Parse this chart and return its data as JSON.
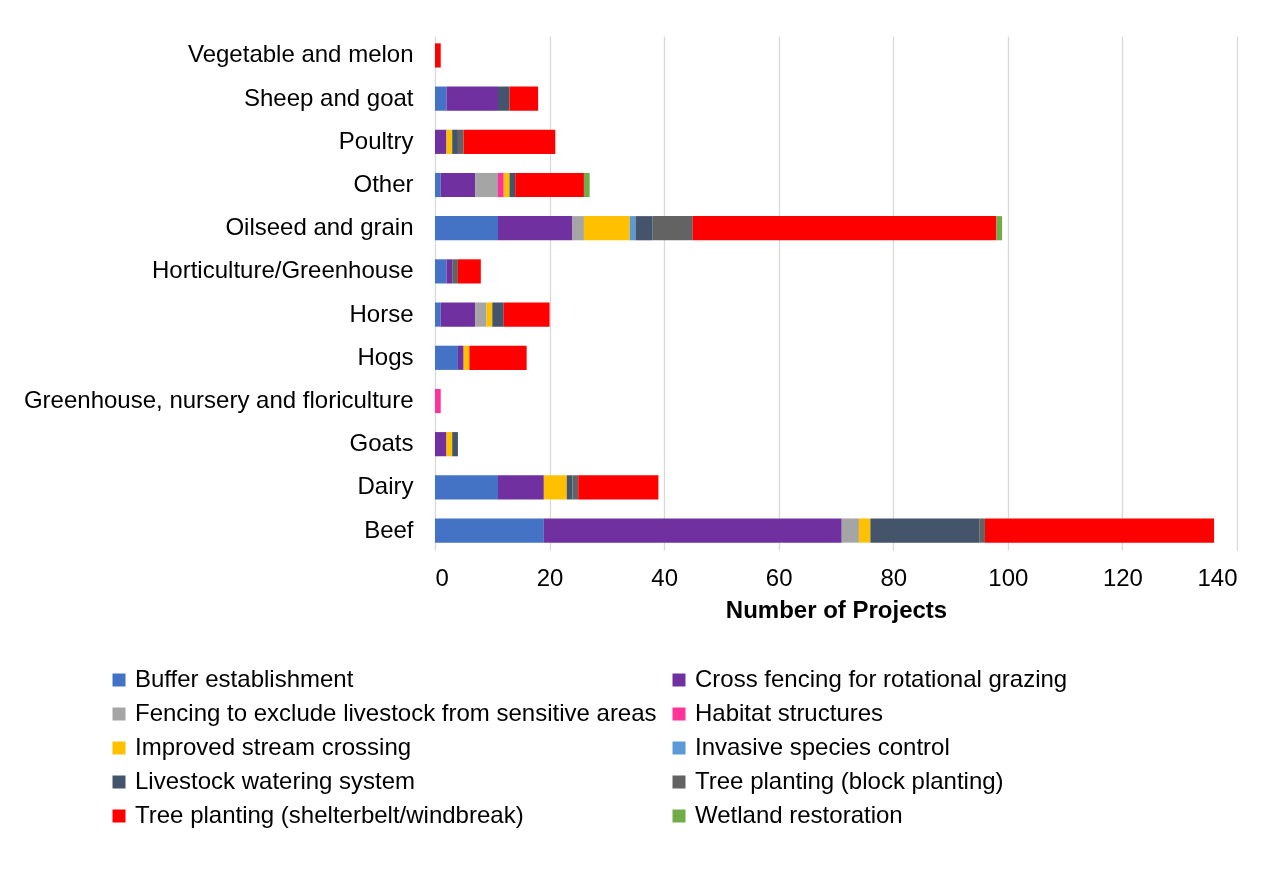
{
  "chart_data": {
    "type": "bar",
    "orientation": "horizontal",
    "stacked": true,
    "xlabel": "Number of Projects",
    "categories": [
      "Vegetable and melon",
      "Sheep and goat",
      "Poultry",
      "Other",
      "Oilseed and grain",
      "Horticulture/Greenhouse",
      "Horse",
      "Hogs",
      "Greenhouse, nursery and floriculture",
      "Goats",
      "Dairy",
      "Beef"
    ],
    "series": [
      {
        "name": "Buffer establishment",
        "color": "#4472c4",
        "values": [
          null,
          2,
          null,
          1,
          11,
          2,
          1,
          4,
          null,
          null,
          11,
          19
        ]
      },
      {
        "name": "Cross fencing for rotational grazing",
        "color": "#7030a0",
        "values": [
          null,
          9,
          2,
          6,
          13,
          1,
          6,
          1,
          null,
          2,
          8,
          52
        ]
      },
      {
        "name": "Fencing to exclude livestock from sensitive areas",
        "color": "#a5a5a5",
        "values": [
          null,
          null,
          null,
          4,
          2,
          null,
          2,
          null,
          null,
          null,
          null,
          3
        ]
      },
      {
        "name": "Habitat structures",
        "color": "#ff3399",
        "values": [
          null,
          null,
          null,
          1,
          null,
          null,
          null,
          null,
          1,
          null,
          null,
          null
        ]
      },
      {
        "name": "Improved stream crossing",
        "color": "#ffc000",
        "values": [
          null,
          null,
          1,
          1,
          8,
          null,
          1,
          1,
          null,
          1,
          4,
          2
        ]
      },
      {
        "name": "Invasive species control",
        "color": "#5b9bd5",
        "values": [
          null,
          null,
          null,
          null,
          1,
          null,
          null,
          null,
          null,
          null,
          null,
          null
        ]
      },
      {
        "name": "Livestock watering system",
        "color": "#44546a",
        "values": [
          null,
          2,
          1,
          1,
          3,
          null,
          2,
          null,
          null,
          1,
          1,
          19
        ]
      },
      {
        "name": "Tree planting (block planting)",
        "color": "#636363",
        "values": [
          null,
          null,
          1,
          null,
          7,
          1,
          null,
          null,
          null,
          null,
          1,
          1
        ]
      },
      {
        "name": "Tree planting (shelterbelt/windbreak)",
        "color": "#ff0000",
        "values": [
          1,
          5,
          16,
          12,
          53,
          4,
          8,
          10,
          null,
          null,
          14,
          40
        ]
      },
      {
        "name": "Wetland restoration",
        "color": "#70ad47",
        "values": [
          null,
          null,
          null,
          1,
          1,
          null,
          null,
          null,
          null,
          null,
          null,
          null
        ]
      }
    ],
    "xlim": [
      0,
      140
    ],
    "xticks": [
      0,
      20,
      40,
      60,
      80,
      100,
      120,
      140
    ],
    "grid": "x",
    "legend": "bottom"
  }
}
